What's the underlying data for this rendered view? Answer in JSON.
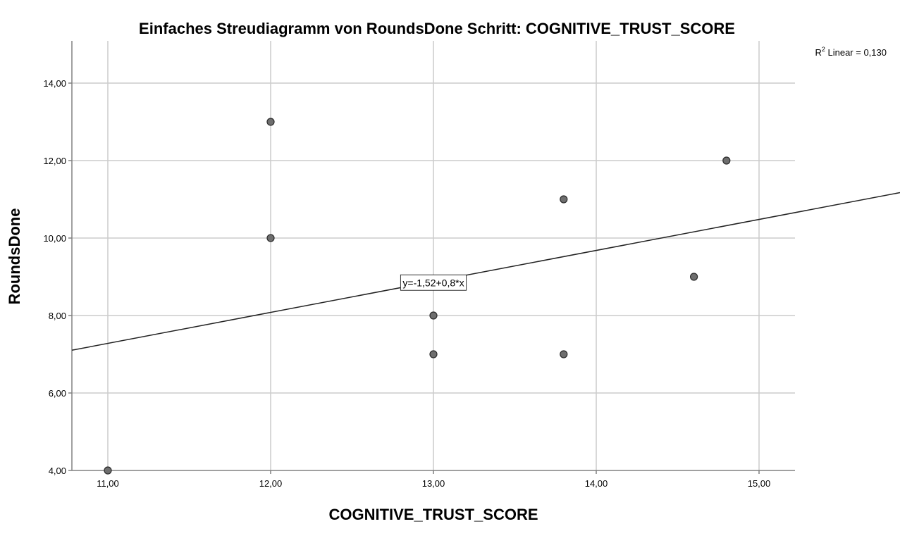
{
  "chart_data": {
    "type": "scatter",
    "title": "Einfaches Streudiagramm  von RoundsDone Schritt: COGNITIVE_TRUST_SCORE",
    "xlabel": "COGNITIVE_TRUST_SCORE",
    "ylabel": "RoundsDone",
    "xlim": [
      10.78,
      15.22
    ],
    "ylim": [
      4.0,
      15.0
    ],
    "xticks": [
      11,
      12,
      13,
      14,
      15
    ],
    "xtick_labels": [
      "11,00",
      "12,00",
      "13,00",
      "14,00",
      "15,00"
    ],
    "yticks": [
      4,
      6,
      8,
      10,
      12,
      14
    ],
    "ytick_labels": [
      "4,00",
      "6,00",
      "8,00",
      "10,00",
      "12,00",
      "14,00"
    ],
    "grid": true,
    "points": [
      {
        "x": 11.0,
        "y": 4.0
      },
      {
        "x": 12.0,
        "y": 13.0
      },
      {
        "x": 12.0,
        "y": 10.0
      },
      {
        "x": 13.0,
        "y": 8.0
      },
      {
        "x": 13.0,
        "y": 7.0
      },
      {
        "x": 13.8,
        "y": 11.0
      },
      {
        "x": 13.8,
        "y": 7.0
      },
      {
        "x": 14.6,
        "y": 9.0
      },
      {
        "x": 14.8,
        "y": 12.0
      }
    ],
    "fit_line": {
      "intercept": -1.52,
      "slope": 0.8,
      "equation_label": "y=-1,52+0,8*x",
      "equation_anchor": {
        "x": 13.0,
        "y": 8.85
      }
    },
    "r2": {
      "prefix": "R",
      "superscript": "2",
      "text": " Linear = 0,130"
    },
    "colors": {
      "point_fill": "#6e6e6e",
      "point_stroke": "#2a2a2a",
      "fit_line": "#222222",
      "grid": "#cccccc",
      "axis": "#808080"
    }
  }
}
